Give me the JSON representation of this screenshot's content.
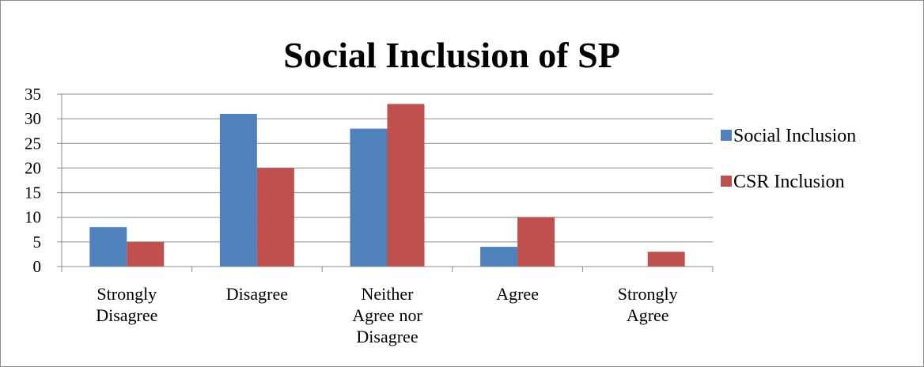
{
  "chart_data": {
    "type": "bar",
    "title": "Social Inclusion of SP",
    "categories": [
      [
        "Strongly",
        "Disagree"
      ],
      [
        "Disagree"
      ],
      [
        "Neither",
        "Agree nor",
        "Disagree"
      ],
      [
        "Agree"
      ],
      [
        "Strongly",
        "Agree"
      ]
    ],
    "series": [
      {
        "name": "Social Inclusion",
        "color": "#4f81bd",
        "values": [
          8,
          31,
          28,
          4,
          0
        ]
      },
      {
        "name": "CSR Inclusion",
        "color": "#c0504d",
        "values": [
          5,
          20,
          33,
          10,
          3
        ]
      }
    ],
    "ylim": [
      0,
      35
    ],
    "yticks": [
      0,
      5,
      10,
      15,
      20,
      25,
      30,
      35
    ],
    "grid": true,
    "legend": "right"
  }
}
